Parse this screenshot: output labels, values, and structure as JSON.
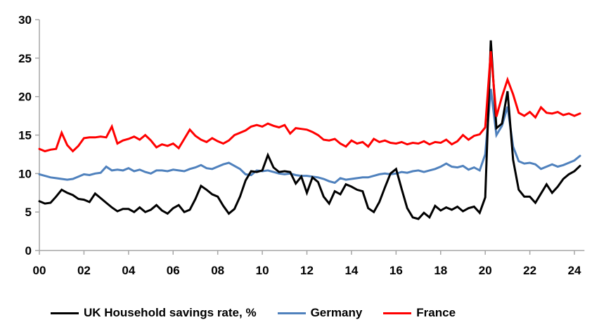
{
  "chart_data": {
    "type": "line",
    "title": "",
    "xlabel": "",
    "ylabel": "",
    "xlim": [
      2000,
      2024.45
    ],
    "ylim": [
      0,
      30
    ],
    "y_ticks": [
      0,
      5,
      10,
      15,
      20,
      25,
      30
    ],
    "x_ticks": {
      "years": [
        2000,
        2002,
        2004,
        2006,
        2008,
        2010,
        2012,
        2014,
        2016,
        2018,
        2020,
        2022,
        2024
      ],
      "labels": [
        "00",
        "02",
        "04",
        "06",
        "08",
        "10",
        "12",
        "14",
        "16",
        "18",
        "20",
        "22",
        "24"
      ]
    },
    "x_start": 2000,
    "x_step": 0.25,
    "grid": "off",
    "legend_position": "bottom",
    "axis_color": "#a6a6a6",
    "draw_order": [
      1,
      0,
      2
    ],
    "series": [
      {
        "id": "uk",
        "name": "UK Household savings rate, %",
        "color": "#000000",
        "values": [
          6.4,
          6.1,
          6.2,
          7.0,
          7.9,
          7.5,
          7.2,
          6.7,
          6.6,
          6.3,
          7.4,
          6.8,
          6.2,
          5.6,
          5.1,
          5.4,
          5.4,
          5.0,
          5.6,
          5.0,
          5.3,
          5.9,
          5.2,
          4.8,
          5.5,
          5.9,
          5.0,
          5.3,
          6.7,
          8.4,
          7.9,
          7.3,
          7.0,
          5.8,
          4.8,
          5.4,
          7.0,
          9.1,
          10.3,
          10.2,
          10.4,
          12.4,
          10.8,
          10.2,
          10.3,
          10.2,
          8.7,
          9.6,
          7.5,
          9.5,
          8.9,
          7.0,
          6.1,
          7.7,
          7.3,
          8.6,
          8.3,
          7.9,
          7.7,
          5.5,
          5.0,
          6.3,
          8.2,
          10.0,
          10.6,
          8.0,
          5.5,
          4.3,
          4.1,
          4.9,
          4.3,
          5.8,
          5.2,
          5.6,
          5.3,
          5.7,
          5.1,
          5.5,
          5.7,
          4.9,
          6.9,
          27.3,
          15.9,
          16.5,
          20.7,
          11.8,
          7.9,
          7.0,
          7.0,
          6.2,
          7.4,
          8.6,
          7.5,
          8.3,
          9.3,
          9.9,
          10.3,
          11.0
        ]
      },
      {
        "id": "germany",
        "name": "Germany",
        "color": "#4F81BD",
        "values": [
          9.9,
          9.7,
          9.5,
          9.4,
          9.3,
          9.2,
          9.3,
          9.6,
          9.9,
          9.8,
          10.0,
          10.1,
          10.9,
          10.4,
          10.5,
          10.4,
          10.7,
          10.3,
          10.5,
          10.2,
          10.0,
          10.4,
          10.4,
          10.3,
          10.5,
          10.4,
          10.3,
          10.6,
          10.8,
          11.1,
          10.7,
          10.6,
          10.9,
          11.2,
          11.4,
          11.0,
          10.6,
          9.9,
          9.8,
          10.4,
          10.3,
          10.4,
          10.2,
          10.0,
          9.9,
          10.0,
          9.8,
          9.7,
          9.7,
          9.6,
          9.5,
          9.3,
          9.0,
          8.8,
          9.4,
          9.2,
          9.3,
          9.4,
          9.5,
          9.5,
          9.7,
          9.9,
          10.0,
          9.9,
          10.0,
          10.2,
          10.1,
          10.3,
          10.4,
          10.2,
          10.4,
          10.6,
          10.9,
          11.3,
          10.9,
          10.8,
          11.0,
          10.5,
          10.8,
          10.4,
          12.5,
          21.0,
          15.0,
          16.2,
          18.7,
          13.5,
          11.6,
          11.3,
          11.4,
          11.2,
          10.6,
          10.9,
          11.2,
          10.9,
          11.1,
          11.4,
          11.7,
          12.3
        ]
      },
      {
        "id": "france",
        "name": "France",
        "color": "#FF0000",
        "values": [
          13.2,
          12.9,
          13.1,
          13.2,
          15.3,
          13.7,
          12.9,
          13.6,
          14.6,
          14.7,
          14.7,
          14.8,
          14.7,
          16.1,
          13.9,
          14.3,
          14.5,
          14.8,
          14.4,
          15.0,
          14.3,
          13.4,
          13.8,
          13.6,
          13.9,
          13.3,
          14.5,
          15.7,
          14.9,
          14.4,
          14.1,
          14.6,
          14.2,
          13.9,
          14.3,
          15.0,
          15.3,
          15.6,
          16.1,
          16.3,
          16.1,
          16.5,
          16.2,
          16.0,
          16.3,
          15.2,
          15.9,
          15.8,
          15.7,
          15.4,
          15.0,
          14.4,
          14.3,
          14.5,
          13.9,
          13.5,
          14.3,
          13.9,
          14.1,
          13.5,
          14.5,
          14.1,
          14.3,
          14.0,
          13.9,
          14.1,
          13.8,
          14.0,
          13.9,
          14.2,
          13.8,
          14.1,
          14.0,
          14.4,
          13.8,
          14.2,
          15.0,
          14.4,
          14.9,
          15.1,
          16.0,
          25.9,
          17.4,
          20.0,
          22.2,
          20.3,
          17.9,
          17.5,
          18.0,
          17.3,
          18.6,
          17.9,
          17.8,
          18.0,
          17.6,
          17.8,
          17.5,
          17.8
        ]
      }
    ]
  }
}
